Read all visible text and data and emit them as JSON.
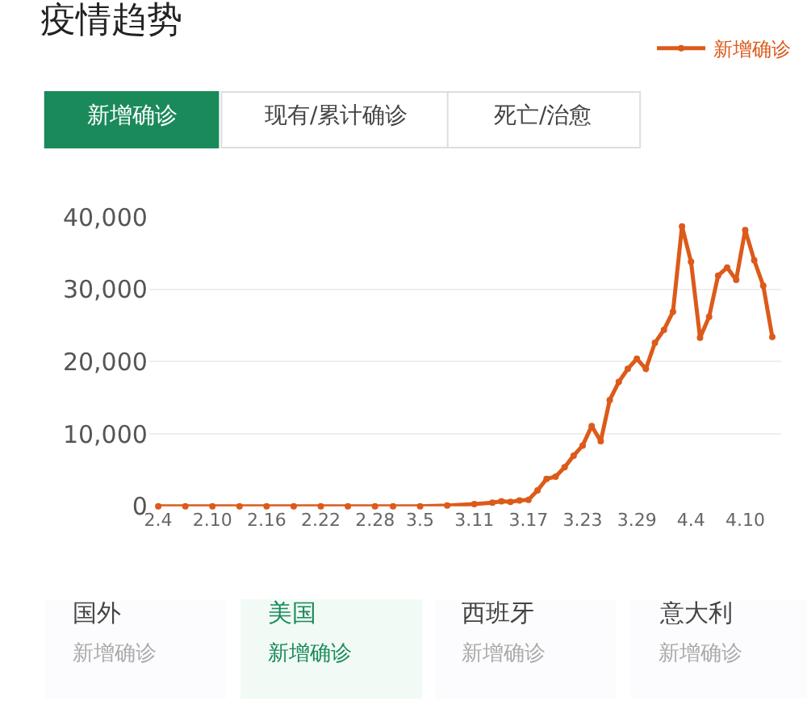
{
  "chart_data": {
    "type": "line",
    "title": "疫情趋势",
    "x": [
      "--02-04",
      "--02-07",
      "--02-10",
      "--02-13",
      "--02-16",
      "--02-19",
      "--02-22",
      "--02-25",
      "--02-28",
      "--03-02",
      "--03-05",
      "--03-08",
      "--03-11",
      "--03-13",
      "--03-14",
      "--03-15",
      "--03-16",
      "--03-17",
      "--03-18",
      "--03-19",
      "--03-20",
      "--03-21",
      "--03-22",
      "--03-23",
      "--03-24",
      "--03-25",
      "--03-26",
      "--03-27",
      "--03-28",
      "--03-29",
      "--03-30",
      "--03-31",
      "--04-01",
      "--04-02",
      "--04-03",
      "--04-04",
      "--04-05",
      "--04-06",
      "--04-07",
      "--04-08",
      "--04-09",
      "--04-10",
      "--04-11",
      "--04-12",
      "--04-13"
    ],
    "series": [
      {
        "name": "新增确诊",
        "color": "#dc5a1a",
        "values": [
          0,
          0,
          0,
          0,
          0,
          0,
          0,
          0,
          0,
          0,
          0,
          100,
          300,
          500,
          700,
          600,
          800,
          900,
          2200,
          3800,
          4100,
          5400,
          7000,
          8400,
          11100,
          9000,
          14700,
          17200,
          19000,
          20400,
          19000,
          22600,
          24400,
          26900,
          38700,
          33800,
          23300,
          26200,
          31900,
          33000,
          31300,
          38200,
          34000,
          30500,
          23400
        ]
      }
    ],
    "xlim": [
      "--02-03",
      "--04-14"
    ],
    "xticks": [
      {
        "value": "--02-04",
        "label": "2.4"
      },
      {
        "value": "--02-10",
        "label": "2.10"
      },
      {
        "value": "--02-16",
        "label": "2.16"
      },
      {
        "value": "--02-22",
        "label": "2.22"
      },
      {
        "value": "--02-28",
        "label": "2.28"
      },
      {
        "value": "--03-05",
        "label": "3.5"
      },
      {
        "value": "--03-11",
        "label": "3.11"
      },
      {
        "value": "--03-17",
        "label": "3.17"
      },
      {
        "value": "--03-23",
        "label": "3.23"
      },
      {
        "value": "--03-29",
        "label": "3.29"
      },
      {
        "value": "--04-04",
        "label": "4.4"
      },
      {
        "value": "--04-10",
        "label": "4.10"
      }
    ],
    "ylim": [
      0,
      40000
    ],
    "yticks": [
      {
        "value": 0,
        "label": "0"
      },
      {
        "value": 10000,
        "label": "10,000"
      },
      {
        "value": 20000,
        "label": "20,000"
      },
      {
        "value": 30000,
        "label": "30,000"
      },
      {
        "value": 40000,
        "label": "40,000"
      }
    ],
    "grid": "y",
    "legend": "top right",
    "marker": "circle",
    "line_style": "solid",
    "annotations": [
      "新增确诊",
      "现有/累计确诊",
      "死亡/治愈",
      "国外",
      "新增确诊",
      "美国",
      "新增确诊",
      "西班牙",
      "新增确诊",
      "意大利",
      "新增确诊"
    ]
  }
}
